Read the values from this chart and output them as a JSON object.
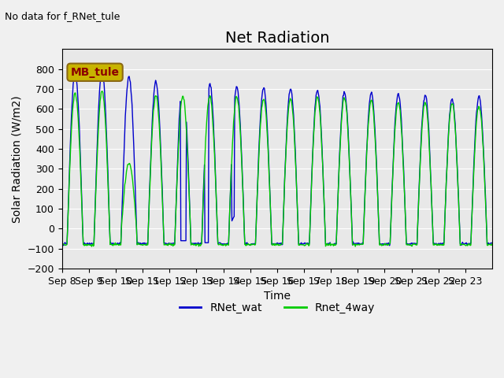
{
  "title": "Net Radiation",
  "no_data_text": "No data for f_RNet_tule",
  "ylabel": "Solar Radiation (W/m2)",
  "xlabel": "Time",
  "ylim": [
    -200,
    900
  ],
  "yticks": [
    -200,
    -100,
    0,
    100,
    200,
    300,
    400,
    500,
    600,
    700,
    800
  ],
  "xtick_labels": [
    "Sep 8",
    "Sep 9",
    "Sep 10",
    "Sep 11",
    "Sep 12",
    "Sep 13",
    "Sep 14",
    "Sep 15",
    "Sep 16",
    "Sep 17",
    "Sep 18",
    "Sep 19",
    "Sep 20",
    "Sep 21",
    "Sep 22",
    "Sep 23"
  ],
  "annotation_box_text": "MB_tule",
  "annotation_box_color": "#c8b400",
  "annotation_text_color": "#8b0000",
  "background_color": "#e8e8e8",
  "fig_background_color": "#f0f0f0",
  "line1_color": "#0000cc",
  "line2_color": "#00cc00",
  "legend_label1": "RNet_wat",
  "legend_label2": "Rnet_4way",
  "title_fontsize": 14,
  "axis_fontsize": 10,
  "tick_fontsize": 9,
  "n_days": 16,
  "pts_per_day": 48,
  "blue_peaks": [
    780,
    790,
    760,
    735,
    730,
    730,
    708,
    705,
    700,
    695,
    685,
    680,
    675,
    670,
    650,
    665
  ],
  "green_peaks": [
    680,
    690,
    325,
    670,
    665,
    665,
    660,
    650,
    655,
    660,
    655,
    645,
    635,
    630,
    630,
    615
  ]
}
